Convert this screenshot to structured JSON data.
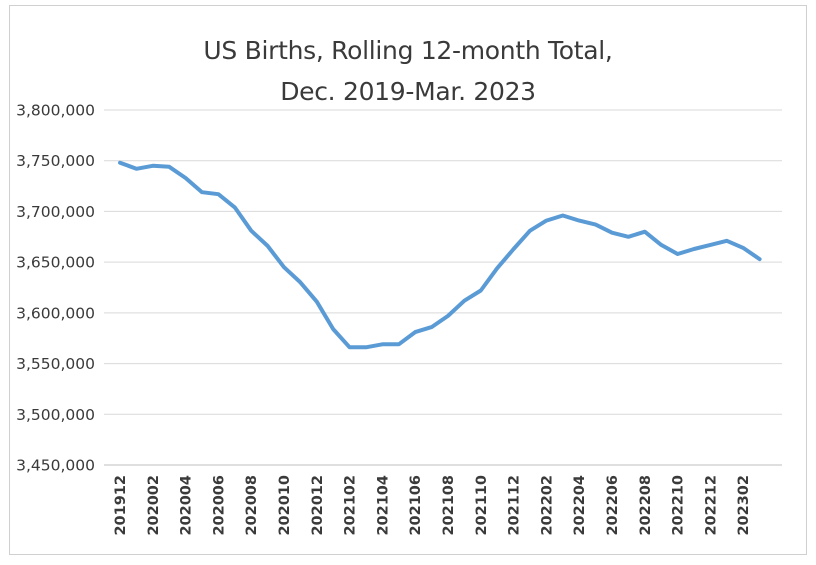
{
  "chart_data": {
    "type": "line",
    "title_lines": [
      "US Births, Rolling 12-month Total,",
      "Dec. 2019-Mar. 2023"
    ],
    "xlabel": "",
    "ylabel": "",
    "ylim": [
      3450000,
      3800000
    ],
    "y_ticks": [
      "3,450,000",
      "3,500,000",
      "3,550,000",
      "3,600,000",
      "3,650,000",
      "3,700,000",
      "3,750,000",
      "3,800,000"
    ],
    "y_tick_values": [
      3450000,
      3500000,
      3550000,
      3600000,
      3650000,
      3700000,
      3750000,
      3800000
    ],
    "x_tick_labels": [
      "201912",
      "202002",
      "202004",
      "202006",
      "202008",
      "202010",
      "202012",
      "202102",
      "202104",
      "202106",
      "202108",
      "202110",
      "202112",
      "202202",
      "202204",
      "202206",
      "202208",
      "202210",
      "202212",
      "202302"
    ],
    "x": [
      "201912",
      "202001",
      "202002",
      "202003",
      "202004",
      "202005",
      "202006",
      "202007",
      "202008",
      "202009",
      "202010",
      "202011",
      "202012",
      "202101",
      "202102",
      "202103",
      "202104",
      "202105",
      "202106",
      "202107",
      "202108",
      "202109",
      "202110",
      "202111",
      "202112",
      "202201",
      "202202",
      "202203",
      "202204",
      "202205",
      "202206",
      "202207",
      "202208",
      "202209",
      "202210",
      "202211",
      "202212",
      "202301",
      "202302",
      "202303"
    ],
    "series": [
      {
        "values": [
          3748000,
          3742000,
          3745000,
          3744000,
          3733000,
          3719000,
          3717000,
          3704000,
          3681000,
          3666000,
          3645000,
          3630000,
          3611000,
          3584000,
          3566000,
          3566000,
          3569000,
          3569000,
          3581000,
          3586000,
          3597000,
          3612000,
          3622000,
          3644000,
          3663000,
          3681000,
          3691000,
          3696000,
          3691000,
          3687000,
          3679000,
          3675000,
          3680000,
          3667000,
          3658000,
          3663000,
          3667000,
          3671000,
          3664000,
          3653000
        ]
      }
    ],
    "grid": true,
    "colors": {
      "line": "#5b9bd5",
      "grid": "#d9d9d9",
      "text": "#3a3a3a"
    }
  }
}
